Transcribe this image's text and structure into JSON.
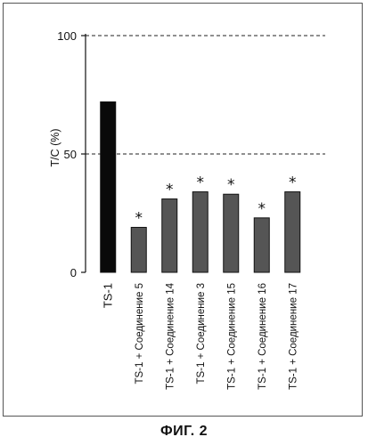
{
  "chart_data": {
    "type": "bar",
    "ylabel": "T/C (%)",
    "xlabel": "",
    "ylim": [
      0,
      100
    ],
    "yticks": [
      0,
      50,
      100
    ],
    "grid": "dashed horizontal at 50 and 100",
    "categories": [
      "TS-1",
      "TS-1 + Соединение 5",
      "TS-1 + Соединение 14",
      "TS-1 + Соединение 3",
      "TS-1 + Соединение 15",
      "TS-1 + Соединение 16",
      "TS-1 + Соединение 17"
    ],
    "values": [
      72,
      19,
      31,
      34,
      33,
      23,
      34
    ],
    "significance": [
      "",
      "*",
      "*",
      "*",
      "*",
      "*",
      "*"
    ],
    "colors": {
      "control": "#0a0a0a",
      "treatment": "#555555"
    }
  },
  "caption": "ФИГ. 2"
}
